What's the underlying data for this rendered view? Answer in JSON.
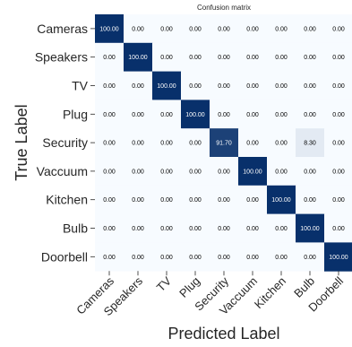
{
  "chart_data": {
    "type": "heatmap",
    "title": "Confusion matrix",
    "xlabel": "Predicted Label",
    "ylabel": "True Label",
    "rows": [
      "Cameras",
      "Speakers",
      "TV",
      "Plug",
      "Security",
      "Vaccuum",
      "Kitchen",
      "Bulb",
      "Doorbell"
    ],
    "columns": [
      "Cameras",
      "Speakers",
      "TV",
      "Plug",
      "Security",
      "Vaccuum",
      "Kitchen",
      "Bulb",
      "Doorbell"
    ],
    "values": [
      [
        100.0,
        0.0,
        0.0,
        0.0,
        0.0,
        0.0,
        0.0,
        0.0,
        0.0
      ],
      [
        0.0,
        100.0,
        0.0,
        0.0,
        0.0,
        0.0,
        0.0,
        0.0,
        0.0
      ],
      [
        0.0,
        0.0,
        100.0,
        0.0,
        0.0,
        0.0,
        0.0,
        0.0,
        0.0
      ],
      [
        0.0,
        0.0,
        0.0,
        100.0,
        0.0,
        0.0,
        0.0,
        0.0,
        0.0
      ],
      [
        0.0,
        0.0,
        0.0,
        0.0,
        91.7,
        0.0,
        0.0,
        8.3,
        0.0
      ],
      [
        0.0,
        0.0,
        0.0,
        0.0,
        0.0,
        100.0,
        0.0,
        0.0,
        0.0
      ],
      [
        0.0,
        0.0,
        0.0,
        0.0,
        0.0,
        0.0,
        100.0,
        0.0,
        0.0
      ],
      [
        0.0,
        0.0,
        0.0,
        0.0,
        0.0,
        0.0,
        0.0,
        100.0,
        0.0
      ],
      [
        0.0,
        0.0,
        0.0,
        0.0,
        0.0,
        0.0,
        0.0,
        0.0,
        100.0
      ]
    ],
    "value_range": [
      0,
      100
    ],
    "colormap": {
      "low": "#f7fbff",
      "high": "#08306b"
    },
    "text_colors": {
      "on_dark": "#ffffff",
      "on_light": "#000000"
    },
    "grid": false
  }
}
